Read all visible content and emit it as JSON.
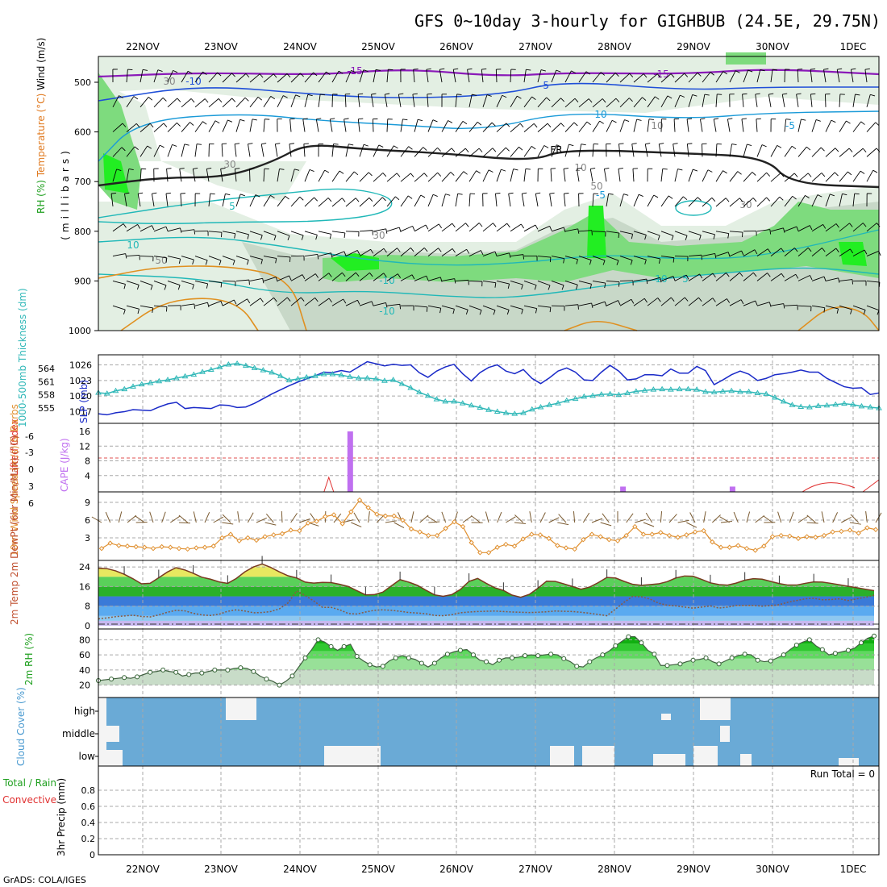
{
  "title": "GFS 0~10day 3-hourly for GIGHBUB (24.5E, 29.75N)",
  "footer": "GrADS: COLA/IGES",
  "dates": [
    "22NOV",
    "23NOV",
    "24NOV",
    "25NOV",
    "26NOV",
    "27NOV",
    "28NOV",
    "29NOV",
    "30NOV",
    "1DEC"
  ],
  "colors": {
    "rh_light": "#e3efe3",
    "rh_mid": "#c8d8c8",
    "rh_green": "#7edb7e",
    "rh_bright": "#22ee22",
    "temp_purple": "#8a1ab8",
    "temp_blue": "#1f4fd8",
    "temp_cyan": "#1a9ad8",
    "temp_teal": "#20b8b8",
    "temp_orange": "#e09020",
    "slp": "#1a2ac8",
    "thickness": "#30b8b8",
    "cape": "#c070f0",
    "lifted": "#e03030",
    "wind10": "#e09030",
    "cloud_bg": "#6aaad6",
    "cloud_clear": "#f4f4f4",
    "rh2m": "#2cd02c",
    "grid": "#a8a8a8"
  },
  "chart_data": [
    {
      "type": "contour",
      "panel": "upper-air",
      "ylabel": "(millibars)",
      "side_labels": [
        "Wind (m/s)",
        "Temperature (°C)",
        "RH (%)"
      ],
      "yticks": [
        "500",
        "600",
        "700",
        "800",
        "900",
        "1000"
      ],
      "ylim": [
        1000,
        450
      ],
      "isotherm_labels": [
        "-15",
        "-10",
        "-5",
        "FR",
        "5",
        "10",
        "-10",
        "-15",
        "-5",
        "10",
        "-10",
        "5",
        "-5",
        "10"
      ],
      "rh_labels": [
        "30",
        "50",
        "30",
        "30",
        "50",
        "30",
        "10",
        "10"
      ]
    },
    {
      "type": "line",
      "panel": "slp-thickness",
      "label_left": "1000-500mb Thickness (dm)",
      "label_right": "SLP (mb)",
      "left_ticks": [
        "564",
        "561",
        "558",
        "555"
      ],
      "right_ticks": [
        "1026",
        "1023",
        "1020",
        "1017"
      ],
      "left_ylim": [
        553,
        566
      ],
      "right_ylim": [
        1016,
        1027
      ],
      "series": [
        {
          "name": "SLP",
          "axis": "right",
          "values": [
            1016.6,
            1016.4,
            1016.8,
            1017.0,
            1017.4,
            1017.3,
            1017.2,
            1017.9,
            1018.5,
            1018.8,
            1017.6,
            1017.8,
            1017.7,
            1017.6,
            1018.3,
            1018.2,
            1017.8,
            1017.9,
            1018.6,
            1019.5,
            1020.4,
            1021.2,
            1022.0,
            1022.7,
            1023.3,
            1023.9,
            1024.6,
            1024.5,
            1024.9,
            1024.6,
            1025.6,
            1026.6,
            1026.2,
            1025.8,
            1026.1,
            1025.9,
            1026.0,
            1024.5,
            1023.6,
            1024.8,
            1025.6,
            1026.1,
            1024.3,
            1022.9,
            1024.5,
            1025.5,
            1026.0,
            1024.8,
            1024.3,
            1025.1,
            1023.4,
            1022.4,
            1023.5,
            1024.8,
            1025.4,
            1024.6,
            1023.1,
            1023.0,
            1024.6,
            1025.9,
            1024.8,
            1023.1,
            1023.3,
            1024.1,
            1024.1,
            1023.9,
            1025.2,
            1024.4,
            1024.4,
            1025.7,
            1024.9,
            1022.2,
            1023.1,
            1024.1,
            1024.8,
            1024.2,
            1023.0,
            1023.4,
            1024.1,
            1024.3,
            1024.6,
            1025.0,
            1024.6,
            1024.6,
            1023.4,
            1022.6,
            1021.8,
            1021.5,
            1021.6,
            1020.3,
            1020.6
          ]
        },
        {
          "name": "Thickness",
          "axis": "left",
          "values": [
            558.5,
            558.3,
            558.9,
            559.3,
            559.9,
            560.4,
            560.7,
            561.1,
            561.4,
            561.8,
            562.2,
            562.6,
            563.2,
            563.7,
            564.3,
            564.9,
            565.1,
            564.6,
            564.1,
            563.6,
            563.1,
            562.3,
            561.3,
            561.6,
            562.0,
            562.3,
            562.7,
            562.7,
            562.5,
            562.1,
            561.8,
            561.8,
            561.6,
            561.2,
            561.4,
            560.5,
            559.6,
            558.6,
            557.8,
            557.0,
            556.5,
            556.5,
            556.1,
            555.6,
            555.1,
            554.6,
            554.2,
            553.9,
            553.7,
            553.9,
            554.7,
            555.2,
            555.7,
            556.1,
            556.7,
            557.1,
            557.6,
            557.8,
            558.1,
            558.2,
            558.0,
            558.4,
            558.8,
            559.0,
            559.2,
            559.3,
            559.2,
            559.3,
            559.3,
            559.2,
            558.7,
            558.6,
            558.8,
            558.9,
            558.7,
            558.7,
            558.4,
            558.2,
            557.4,
            556.5,
            555.7,
            555.3,
            555.2,
            555.5,
            555.6,
            555.8,
            556.0,
            555.8,
            555.4,
            555.2,
            555.0
          ]
        }
      ]
    },
    {
      "type": "bar",
      "panel": "cape-lifted-index",
      "label_left": "Lifted Index",
      "label_right": "CAPE (J/kg)",
      "left_ticks": [
        "-6",
        "-3",
        "0",
        "3",
        "6"
      ],
      "right_ticks": [
        "16",
        "12",
        "8",
        "4"
      ],
      "cape_bars": [
        {
          "t": 23.6,
          "value": 16
        },
        {
          "t": 51.5,
          "value": 1
        },
        {
          "t": 62.7,
          "value": 1
        }
      ],
      "lifted_index": [
        {
          "t": 21.7,
          "value": 4.5
        },
        {
          "t": 81.5,
          "value": 4.5
        },
        {
          "t": 88.5,
          "value": 4.5
        }
      ]
    },
    {
      "type": "line",
      "panel": "wind10m",
      "label": "10m Wind Speed (m/s) & Barbs",
      "yticks": [
        "9",
        "6",
        "3"
      ],
      "ylim": [
        0,
        10.5
      ],
      "values": [
        1.2,
        2.1,
        1.7,
        1.6,
        1.5,
        1.4,
        1.2,
        1.5,
        1.4,
        1.2,
        1.1,
        1.3,
        1.4,
        1.6,
        3.0,
        3.6,
        2.5,
        3.0,
        2.6,
        3.2,
        3.5,
        3.7,
        4.3,
        4.2,
        5.5,
        5.8,
        6.6,
        6.9,
        5.4,
        7.4,
        9.4,
        8.1,
        7.0,
        6.7,
        6.7,
        6.0,
        4.5,
        4.0,
        3.4,
        3.4,
        4.6,
        5.7,
        4.9,
        2.2,
        0.5,
        0.5,
        1.4,
        1.9,
        1.6,
        2.8,
        3.6,
        3.5,
        2.9,
        1.7,
        1.3,
        1.1,
        2.7,
        3.6,
        3.2,
        2.7,
        2.5,
        3.4,
        4.9,
        3.6,
        3.6,
        3.9,
        3.4,
        3.1,
        3.5,
        4.0,
        4.2,
        2.3,
        1.4,
        1.4,
        1.7,
        1.2,
        0.9,
        1.6,
        3.2,
        3.4,
        3.3,
        2.9,
        3.2,
        3.1,
        3.4,
        4.0,
        4.1,
        4.3,
        3.8,
        4.7,
        4.4
      ]
    },
    {
      "type": "area",
      "panel": "temp2m",
      "label": "2m Temp 2m DewPt (6hr Min/Max) (°C)",
      "yticks": [
        "24",
        "16",
        "8",
        "0"
      ],
      "ylim": [
        0,
        26
      ],
      "temp": [
        23.5,
        23.3,
        22.4,
        21.0,
        19.2,
        17.1,
        17.3,
        19.6,
        21.9,
        23.7,
        22.8,
        21.4,
        19.8,
        19.0,
        17.9,
        17.3,
        19.3,
        22.0,
        24.0,
        25.2,
        23.8,
        22.0,
        20.4,
        19.5,
        17.8,
        17.4,
        17.7,
        17.6,
        16.9,
        16.0,
        14.3,
        12.6,
        12.7,
        13.7,
        16.3,
        18.8,
        17.8,
        16.5,
        14.5,
        12.6,
        12.0,
        12.7,
        14.8,
        18.1,
        19.3,
        17.3,
        15.5,
        14.4,
        12.5,
        11.6,
        12.8,
        15.3,
        18.2,
        18.1,
        17.1,
        16.0,
        14.9,
        15.8,
        17.6,
        19.7,
        19.5,
        18.1,
        16.9,
        16.5,
        16.8,
        17.1,
        18.0,
        19.5,
        20.3,
        20.2,
        18.9,
        17.5,
        16.8,
        16.6,
        17.4,
        18.6,
        19.2,
        19.0,
        18.1,
        17.2,
        16.6,
        16.6,
        17.3,
        17.9,
        17.8,
        17.3,
        16.7,
        16.1,
        15.5,
        14.9,
        14.3
      ],
      "dewpt": [
        2.8,
        3.2,
        3.7,
        4.0,
        4.3,
        3.8,
        3.6,
        4.4,
        5.5,
        6.3,
        6.1,
        5.1,
        4.4,
        4.2,
        4.7,
        5.9,
        6.5,
        6.0,
        5.3,
        5.4,
        5.8,
        6.9,
        9.3,
        14.2,
        12.3,
        10.1,
        7.5,
        7.5,
        6.5,
        5.0,
        4.8,
        5.6,
        6.3,
        6.5,
        6.3,
        5.9,
        5.4,
        5.2,
        4.9,
        4.2,
        4.1,
        4.5,
        5.3,
        5.6,
        5.8,
        5.9,
        6.0,
        5.8,
        5.6,
        5.5,
        5.4,
        5.5,
        5.7,
        6.0,
        5.9,
        5.8,
        5.5,
        5.1,
        4.6,
        4.1,
        6.8,
        9.6,
        12.0,
        11.8,
        10.9,
        9.2,
        8.4,
        8.1,
        7.6,
        7.2,
        7.6,
        8.1,
        7.2,
        7.6,
        8.3,
        8.3,
        8.3,
        8.0,
        8.2,
        8.6,
        9.6,
        10.3,
        11.0,
        11.2,
        10.6,
        10.7,
        11.0,
        10.3,
        11.0,
        11.6,
        12.5
      ]
    },
    {
      "type": "area",
      "panel": "rh2m",
      "label": "2m RH (%)",
      "yticks": [
        "80",
        "60",
        "40",
        "20"
      ],
      "ylim": [
        10,
        90
      ],
      "values": [
        26,
        27,
        28,
        29,
        30,
        29,
        31,
        34,
        37,
        38,
        40,
        38,
        37,
        32,
        34,
        36,
        36,
        38,
        40,
        40,
        40,
        42,
        43,
        42,
        38,
        32,
        28,
        25,
        20,
        25,
        32,
        44,
        56,
        67,
        80,
        77,
        71,
        66,
        71,
        74,
        58,
        52,
        47,
        44,
        45,
        52,
        56,
        59,
        56,
        54,
        49,
        44,
        49,
        56,
        61,
        64,
        66,
        67,
        60,
        53,
        51,
        47,
        53,
        56,
        56,
        57,
        59,
        60,
        59,
        60,
        61,
        60,
        55,
        51,
        45,
        44,
        51,
        56,
        60,
        65,
        72,
        78,
        84,
        84,
        76,
        66,
        61,
        46,
        46,
        47,
        48,
        51,
        53,
        54,
        56,
        51,
        48,
        52,
        56,
        59,
        61,
        60,
        53,
        51,
        52,
        56,
        60,
        67,
        73,
        77,
        80,
        72,
        67,
        60,
        62,
        64,
        66,
        69,
        76,
        82,
        85
      ]
    },
    {
      "type": "step",
      "panel": "cloud-cover",
      "label": "Cloud Cover (%)",
      "yticks": [
        "high",
        "middle",
        "low"
      ],
      "levels": [
        "high",
        "middle",
        "low"
      ]
    },
    {
      "type": "bar",
      "panel": "precip",
      "label_left": "Total / Rain Convective",
      "label": "3hr Precip (mm)",
      "run_total_label": "Run Total = 0",
      "yticks": [
        "0.8",
        "0.6",
        "0.4",
        "0.2",
        "0"
      ],
      "ylim": [
        0,
        1.0
      ],
      "values": []
    }
  ]
}
